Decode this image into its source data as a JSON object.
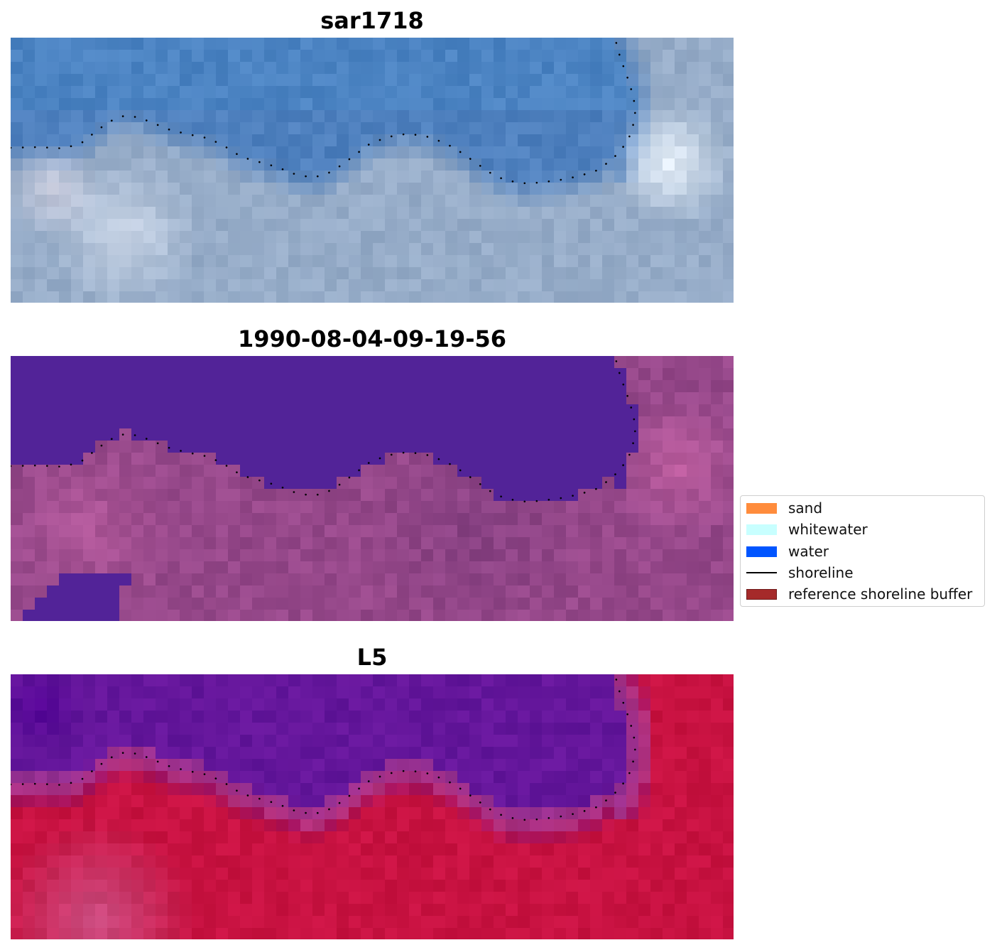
{
  "panels": [
    {
      "title": "sar1718",
      "palette": "rgb"
    },
    {
      "title": "1990-08-04-09-19-56",
      "palette": "classified"
    },
    {
      "title": "L5",
      "palette": "index"
    }
  ],
  "legend": {
    "items": [
      {
        "label": "sand",
        "color": "#ff8c3c",
        "kind": "patch"
      },
      {
        "label": "whitewater",
        "color": "#c8ffff",
        "kind": "patch"
      },
      {
        "label": "water",
        "color": "#0055ff",
        "kind": "patch"
      },
      {
        "label": "shoreline",
        "color": "#000000",
        "kind": "line"
      },
      {
        "label": "reference shoreline buffer",
        "color": "#a52a2a",
        "kind": "patch"
      }
    ]
  }
}
